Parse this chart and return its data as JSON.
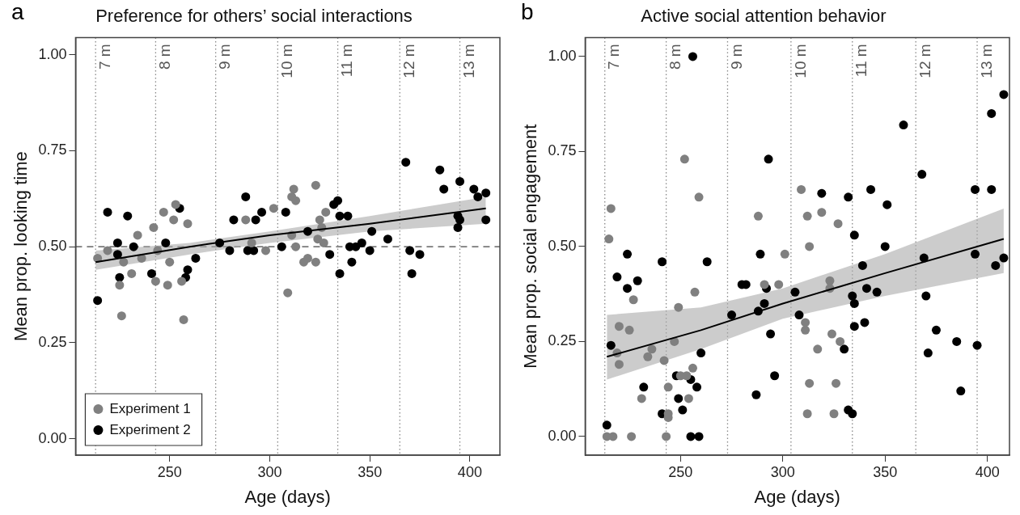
{
  "chart_data": [
    {
      "type": "scatter",
      "title": "Preference for others’ social interactions",
      "xlabel": "Age (days)",
      "ylabel": "Mean prop. looking time",
      "annotations": [
        "a"
      ],
      "xlim": [
        203,
        415
      ],
      "ylim": [
        -0.043,
        1.045
      ],
      "xticks": [
        250,
        300,
        350,
        400
      ],
      "yticks": [
        {
          "value": 0,
          "label": "0.00"
        },
        {
          "value": 0.25,
          "label": "0.25"
        },
        {
          "value": 0.5,
          "label": "0.50"
        },
        {
          "value": 0.75,
          "label": "0.75"
        },
        {
          "value": 1,
          "label": "1.00"
        }
      ],
      "grid": false,
      "legend": "bottom left",
      "marker": "circle",
      "ref_lines": [
        {
          "axis": "y",
          "value": 0.5,
          "label": null,
          "color": "#444444",
          "line_style": "dashed"
        },
        {
          "axis": "x",
          "value": 213,
          "label": "7 m",
          "color": "#888888",
          "line_style": "dotted"
        },
        {
          "axis": "x",
          "value": 243,
          "label": "8 m",
          "color": "#888888",
          "line_style": "dotted"
        },
        {
          "axis": "x",
          "value": 273,
          "label": "9 m",
          "color": "#888888",
          "line_style": "dotted"
        },
        {
          "axis": "x",
          "value": 304,
          "label": "10 m",
          "color": "#888888",
          "line_style": "dotted"
        },
        {
          "axis": "x",
          "value": 334,
          "label": "11 m",
          "color": "#888888",
          "line_style": "dotted"
        },
        {
          "axis": "x",
          "value": 365,
          "label": "12 m",
          "color": "#888888",
          "line_style": "dotted"
        },
        {
          "axis": "x",
          "value": 395,
          "label": "13 m",
          "color": "#888888",
          "line_style": "dotted"
        }
      ],
      "series": [
        {
          "name": "Experiment 1",
          "type": "scatter",
          "color": "#808080",
          "x": [
            214,
            219,
            227,
            225,
            226,
            231,
            234,
            236,
            242,
            244,
            243,
            247,
            250,
            249,
            252,
            253,
            259,
            256,
            257,
            288,
            291,
            298,
            302,
            309,
            312,
            311,
            313,
            323,
            328,
            325,
            326,
            311,
            324,
            327,
            313,
            319,
            317,
            323
          ],
          "values": [
            0.47,
            0.49,
            0.46,
            0.4,
            0.32,
            0.43,
            0.53,
            0.47,
            0.55,
            0.49,
            0.41,
            0.59,
            0.46,
            0.4,
            0.57,
            0.61,
            0.56,
            0.41,
            0.31,
            0.57,
            0.51,
            0.49,
            0.6,
            0.38,
            0.65,
            0.63,
            0.62,
            0.66,
            0.59,
            0.57,
            0.55,
            0.53,
            0.52,
            0.51,
            0.5,
            0.47,
            0.46,
            0.46
          ]
        },
        {
          "name": "Experiment 2",
          "type": "scatter",
          "color": "#000000",
          "x": [
            214,
            219,
            224,
            224,
            225,
            229,
            232,
            241,
            248,
            255,
            259,
            258,
            263,
            275,
            280,
            282,
            288,
            289,
            292,
            293,
            296,
            306,
            308,
            319,
            330,
            332,
            334,
            335,
            339,
            335,
            340,
            343,
            346,
            341,
            350,
            351,
            359,
            368,
            370,
            375,
            371,
            385,
            387,
            395,
            394,
            395,
            394,
            402,
            404,
            408,
            408
          ],
          "values": [
            0.36,
            0.59,
            0.51,
            0.48,
            0.42,
            0.58,
            0.5,
            0.43,
            0.51,
            0.6,
            0.44,
            0.42,
            0.47,
            0.51,
            0.49,
            0.57,
            0.63,
            0.49,
            0.49,
            0.57,
            0.59,
            0.5,
            0.59,
            0.54,
            0.48,
            0.61,
            0.62,
            0.58,
            0.58,
            0.43,
            0.5,
            0.5,
            0.51,
            0.46,
            0.49,
            0.54,
            0.52,
            0.72,
            0.49,
            0.48,
            0.43,
            0.7,
            0.65,
            0.67,
            0.58,
            0.57,
            0.55,
            0.65,
            0.63,
            0.64,
            0.57
          ]
        },
        {
          "type": "line",
          "color": "#000000",
          "marker": "none",
          "x": [
            213,
            260,
            300,
            350,
            408
          ],
          "values": [
            0.46,
            0.5,
            0.53,
            0.56,
            0.6
          ],
          "lower": [
            0.44,
            0.48,
            0.51,
            0.54,
            0.56
          ],
          "upper": [
            0.49,
            0.51,
            0.54,
            0.58,
            0.63
          ]
        }
      ]
    },
    {
      "type": "scatter",
      "title": "Active social attention behavior",
      "xlabel": "Age (days)",
      "ylabel": "Mean prop. social engagement",
      "annotations": [
        "b"
      ],
      "xlim": [
        203.4,
        410.8
      ],
      "ylim": [
        -0.049,
        1.05
      ],
      "xticks": [
        250,
        300,
        350,
        400
      ],
      "yticks": [
        {
          "value": 0,
          "label": "0.00"
        },
        {
          "value": 0.25,
          "label": "0.25"
        },
        {
          "value": 0.5,
          "label": "0.50"
        },
        {
          "value": 0.75,
          "label": "0.75"
        },
        {
          "value": 1,
          "label": "1.00"
        }
      ],
      "grid": false,
      "marker": "circle",
      "ref_lines": [
        {
          "axis": "x",
          "value": 213,
          "label": "7 m",
          "color": "#888888",
          "line_style": "dotted"
        },
        {
          "axis": "x",
          "value": 243,
          "label": "8 m",
          "color": "#888888",
          "line_style": "dotted"
        },
        {
          "axis": "x",
          "value": 273,
          "label": "9 m",
          "color": "#888888",
          "line_style": "dotted"
        },
        {
          "axis": "x",
          "value": 304,
          "label": "10 m",
          "color": "#888888",
          "line_style": "dotted"
        },
        {
          "axis": "x",
          "value": 334,
          "label": "11 m",
          "color": "#888888",
          "line_style": "dotted"
        },
        {
          "axis": "x",
          "value": 365,
          "label": "12 m",
          "color": "#888888",
          "line_style": "dotted"
        },
        {
          "axis": "x",
          "value": 395,
          "label": "13 m",
          "color": "#888888",
          "line_style": "dotted"
        }
      ],
      "series": [
        {
          "type": "scatter",
          "color": "#808080",
          "x": [
            252,
            259,
            216,
            288,
            215,
            301,
            291,
            298,
            227,
            257,
            249,
            220,
            225,
            247,
            219,
            220,
            236,
            234,
            242,
            256,
            250,
            253,
            244,
            254,
            231,
            244,
            244,
            214,
            217,
            226,
            243,
            309,
            312,
            319,
            327,
            313,
            323,
            323,
            311,
            311,
            317,
            324,
            328,
            313,
            326,
            312,
            325
          ],
          "values": [
            0.73,
            0.63,
            0.6,
            0.58,
            0.52,
            0.48,
            0.4,
            0.4,
            0.36,
            0.38,
            0.34,
            0.29,
            0.28,
            0.25,
            0.22,
            0.19,
            0.23,
            0.21,
            0.2,
            0.18,
            0.16,
            0.16,
            0.13,
            0.1,
            0.1,
            0.06,
            0.05,
            0.0,
            0.0,
            0.0,
            0.0,
            0.65,
            0.58,
            0.59,
            0.56,
            0.5,
            0.41,
            0.39,
            0.3,
            0.28,
            0.23,
            0.27,
            0.25,
            0.14,
            0.14,
            0.06,
            0.06
          ]
        },
        {
          "type": "scatter",
          "color": "#000000",
          "x": [
            256,
            293,
            224,
            241,
            263,
            289,
            219,
            229,
            224,
            280,
            282,
            292,
            291,
            275,
            288,
            216,
            294,
            260,
            296,
            232,
            248,
            255,
            258,
            287,
            249,
            251,
            241,
            214,
            255,
            259,
            408,
            402,
            359,
            368,
            343,
            319,
            332,
            394,
            402,
            351,
            335,
            350,
            339,
            369,
            394,
            404,
            408,
            306,
            308,
            341,
            346,
            334,
            335,
            370,
            340,
            335,
            375,
            385,
            395,
            371,
            330,
            387,
            332,
            334
          ],
          "values": [
            1.0,
            0.73,
            0.48,
            0.46,
            0.46,
            0.48,
            0.42,
            0.41,
            0.39,
            0.4,
            0.4,
            0.39,
            0.35,
            0.32,
            0.33,
            0.24,
            0.27,
            0.22,
            0.16,
            0.13,
            0.16,
            0.15,
            0.13,
            0.11,
            0.1,
            0.07,
            0.06,
            0.03,
            0.0,
            0.0,
            0.9,
            0.85,
            0.82,
            0.69,
            0.65,
            0.64,
            0.63,
            0.65,
            0.65,
            0.61,
            0.53,
            0.5,
            0.45,
            0.47,
            0.48,
            0.45,
            0.47,
            0.38,
            0.32,
            0.39,
            0.38,
            0.37,
            0.35,
            0.37,
            0.3,
            0.29,
            0.28,
            0.25,
            0.24,
            0.22,
            0.23,
            0.12,
            0.07,
            0.06
          ]
        },
        {
          "type": "line",
          "color": "#000000",
          "marker": "none",
          "x": [
            214,
            260,
            300,
            350,
            408
          ],
          "values": [
            0.21,
            0.28,
            0.35,
            0.43,
            0.52
          ],
          "lower": [
            0.15,
            0.23,
            0.31,
            0.37,
            0.43
          ],
          "upper": [
            0.32,
            0.34,
            0.39,
            0.48,
            0.6
          ]
        }
      ]
    }
  ]
}
